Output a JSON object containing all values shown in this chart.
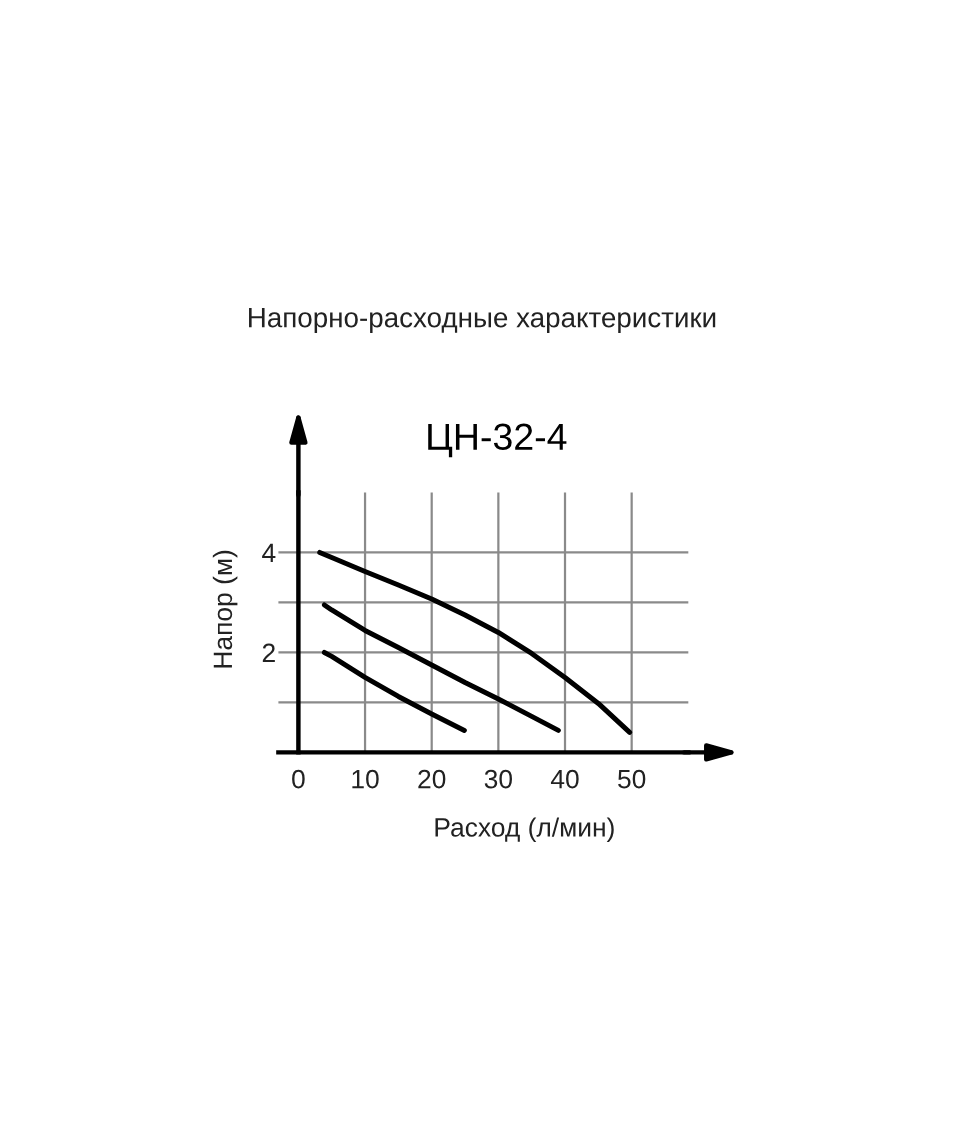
{
  "chart_data": {
    "type": "line",
    "title": "Напорно-расходные характеристики",
    "subtitle": "ЦН-32-4",
    "xlabel": "Расход (л/мин)",
    "ylabel": "Напор (м)",
    "series": [
      {
        "color": "#000000",
        "x": [
          3.2,
          5,
          10,
          15,
          20,
          25,
          30,
          35,
          40,
          45,
          49.7
        ],
        "values": [
          4.0,
          3.9,
          3.62,
          3.35,
          3.07,
          2.75,
          2.4,
          1.98,
          1.5,
          0.98,
          0.4
        ]
      },
      {
        "color": "#000000",
        "x": [
          3.9,
          5,
          10,
          15,
          20,
          25,
          30,
          35,
          39
        ],
        "values": [
          2.95,
          2.85,
          2.44,
          2.1,
          1.75,
          1.4,
          1.07,
          0.72,
          0.44
        ]
      },
      {
        "color": "#000000",
        "x": [
          3.9,
          5,
          10,
          15,
          20,
          24.9
        ],
        "values": [
          2.0,
          1.92,
          1.5,
          1.12,
          0.77,
          0.44
        ]
      }
    ],
    "xlim": [
      -3,
      58.5
    ],
    "ylim": [
      0,
      5.2
    ],
    "xticks": [
      0,
      10,
      20,
      30,
      40,
      50
    ],
    "yticks": [
      {
        "value": 1,
        "label": null
      },
      2,
      {
        "value": 3,
        "label": null
      },
      4
    ],
    "grid": true
  }
}
